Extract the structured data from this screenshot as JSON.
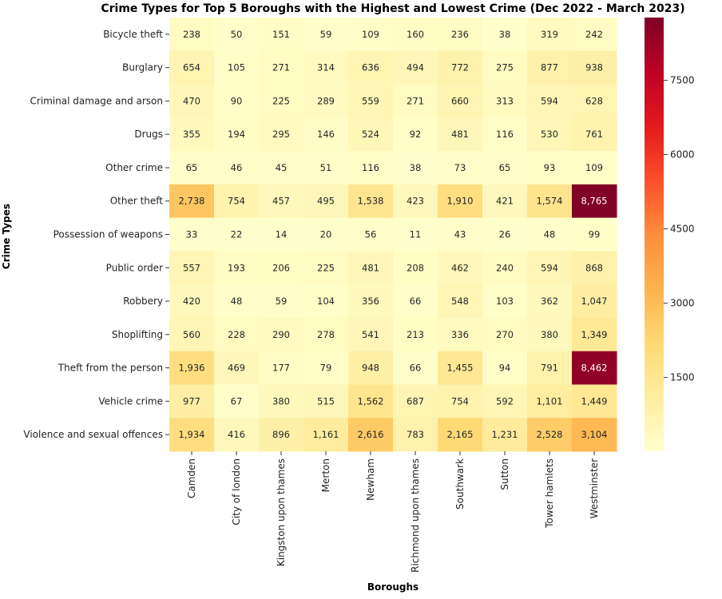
{
  "chart_data": {
    "type": "heatmap",
    "title": "Crime Types for Top 5 Boroughs with the Highest and Lowest Crime (Dec 2022 - March 2023)",
    "xlabel": "Boroughs",
    "ylabel": "Crime Types",
    "x_categories": [
      "Camden",
      "City of london",
      "Kingston upon thames",
      "Merton",
      "Newham",
      "Richmond upon thames",
      "Southwark",
      "Sutton",
      "Tower hamlets",
      "Westminster"
    ],
    "y_categories": [
      "Bicycle theft",
      "Burglary",
      "Criminal damage and arson",
      "Drugs",
      "Other crime",
      "Other theft",
      "Possession of weapons",
      "Public order",
      "Robbery",
      "Shoplifting",
      "Theft from the person",
      "Vehicle crime",
      "Violence and sexual offences"
    ],
    "values": [
      [
        238,
        50,
        151,
        59,
        109,
        160,
        236,
        38,
        319,
        242
      ],
      [
        654,
        105,
        271,
        314,
        636,
        494,
        772,
        275,
        877,
        938
      ],
      [
        470,
        90,
        225,
        289,
        559,
        271,
        660,
        313,
        594,
        628
      ],
      [
        355,
        194,
        295,
        146,
        524,
        92,
        481,
        116,
        530,
        761
      ],
      [
        65,
        46,
        45,
        51,
        116,
        38,
        73,
        65,
        93,
        109
      ],
      [
        2738,
        754,
        457,
        495,
        1538,
        423,
        1910,
        421,
        1574,
        8765
      ],
      [
        33,
        22,
        14,
        20,
        56,
        11,
        43,
        26,
        48,
        99
      ],
      [
        557,
        193,
        206,
        225,
        481,
        208,
        462,
        240,
        594,
        868
      ],
      [
        420,
        48,
        59,
        104,
        356,
        66,
        548,
        103,
        362,
        1047
      ],
      [
        560,
        228,
        290,
        278,
        541,
        213,
        336,
        270,
        380,
        1349
      ],
      [
        1936,
        469,
        177,
        79,
        948,
        66,
        1455,
        94,
        791,
        8462
      ],
      [
        977,
        67,
        380,
        515,
        1562,
        687,
        754,
        592,
        1101,
        1449
      ],
      [
        1934,
        416,
        896,
        1161,
        2616,
        783,
        2165,
        1231,
        2528,
        3104
      ]
    ],
    "colormap": "YlOrRd",
    "colorbar": {
      "min": 11,
      "max": 8765,
      "ticks": [
        1500,
        3000,
        4500,
        6000,
        7500
      ]
    },
    "annotations": "values shown in each cell with thousands separators"
  }
}
